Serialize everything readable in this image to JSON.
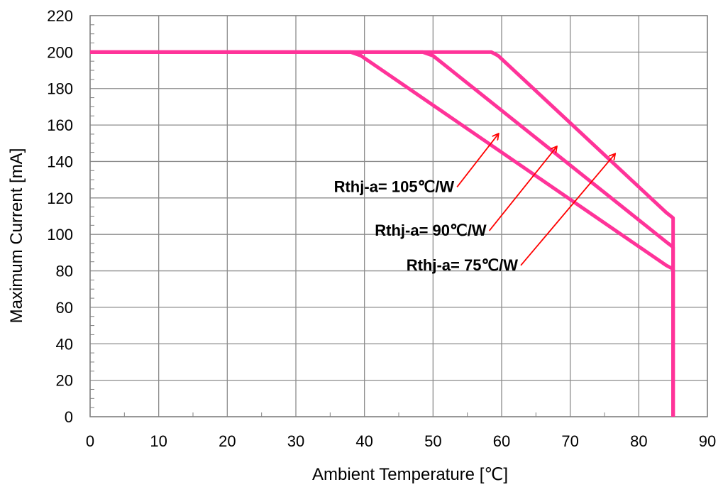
{
  "chart_data": {
    "type": "line",
    "title": "",
    "xlabel": "Ambient Temperature [℃]",
    "ylabel": "Maximum Current [mA]",
    "xlim": [
      0,
      90
    ],
    "ylim": [
      0,
      220
    ],
    "xticks": [
      0,
      10,
      20,
      30,
      40,
      50,
      60,
      70,
      80,
      90
    ],
    "yticks": [
      0,
      20,
      40,
      60,
      80,
      100,
      120,
      140,
      160,
      180,
      200,
      220
    ],
    "grid": true,
    "legend": "none",
    "line_color": "#ff3399",
    "arrow_color": "#ff0000",
    "series": [
      {
        "x": [
          0,
          38,
          39.5,
          84,
          85,
          85
        ],
        "y": [
          200,
          200,
          198,
          83,
          81,
          0
        ]
      },
      {
        "x": [
          0,
          48.5,
          50,
          84.3,
          85,
          85
        ],
        "y": [
          200,
          200,
          198,
          95,
          93,
          0
        ]
      },
      {
        "x": [
          0,
          58.5,
          59.5,
          84,
          85,
          85
        ],
        "y": [
          200,
          200,
          198,
          112,
          109,
          0
        ]
      }
    ],
    "annotations": [
      {
        "text": "Rthj-a= 105℃/W",
        "arrow_from": [
          53.5,
          126
        ],
        "arrow_to": [
          59.5,
          155
        ]
      },
      {
        "text": "Rthj-a= 90℃/W",
        "arrow_from": [
          58.2,
          102
        ],
        "arrow_to": [
          68,
          148
        ]
      },
      {
        "text": "Rthj-a= 75℃/W",
        "arrow_from": [
          62.8,
          83
        ],
        "arrow_to": [
          76.5,
          144
        ]
      }
    ]
  }
}
